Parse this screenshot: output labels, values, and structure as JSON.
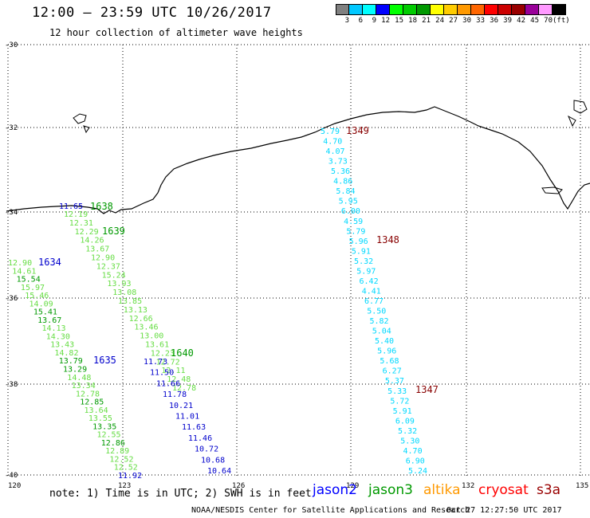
{
  "header": {
    "title": "12:00 – 23:59 UTC 10/26/2017",
    "subtitle": "12 hour collection of altimeter wave heights"
  },
  "color_scale": {
    "labels": [
      "3",
      "6",
      "9",
      "12",
      "15",
      "18",
      "21",
      "24",
      "27",
      "30",
      "33",
      "36",
      "39",
      "42",
      "45",
      "70",
      "(ft)"
    ],
    "colors": [
      "#808080",
      "#00c8ff",
      "#00ffff",
      "#0000ff",
      "#00ff00",
      "#00cc00",
      "#009900",
      "#ffff00",
      "#ffcc00",
      "#ff9900",
      "#ff6600",
      "#ff0000",
      "#cc0000",
      "#990000",
      "#990099",
      "#ff99ff",
      "#000000"
    ]
  },
  "axes": {
    "lat_labels": [
      "-30",
      "-32",
      "-34",
      "-36",
      "-38",
      "-40"
    ],
    "lon_labels": [
      "120",
      "123",
      "126",
      "129",
      "132",
      "135"
    ]
  },
  "tracks": {
    "ids": [
      "1349",
      "1348",
      "1347",
      "1638",
      "1639",
      "1640",
      "1634",
      "1635"
    ],
    "track_1349_1348_1347": [
      "5.79",
      "4.70",
      "4.07",
      "3.73",
      "5.36",
      "4.86",
      "5.84",
      "5.95",
      "6.00",
      "4.59",
      "5.79",
      "5.96",
      "5.91",
      "5.32",
      "5.97",
      "6.42",
      "4.41",
      "6.77",
      "5.50",
      "5.82",
      "5.04",
      "5.40",
      "5.96",
      "5.68",
      "6.27",
      "5.37",
      "5.33",
      "5.72",
      "5.91",
      "6.09",
      "5.32",
      "5.30",
      "4.70",
      "6.90",
      "5.24"
    ],
    "track_1638_1639_1640": [
      "12.19",
      "12.31",
      "12.29",
      "14.26",
      "13.67",
      "12.90",
      "12.37",
      "15.24",
      "13.93",
      "13.08",
      "13.85",
      "13.13",
      "12.66",
      "13.46",
      "13.00",
      "13.61",
      "12.23",
      "12.72",
      "12.11",
      "12.48",
      "12.78"
    ],
    "track_1640_blue": [
      "11.73",
      "11.50",
      "11.66",
      "11.78",
      "10.21",
      "11.01",
      "11.63",
      "11.46",
      "10.72",
      "10.68",
      "10.64"
    ],
    "track_1634_left": [
      "12.90",
      "14.61",
      "15.54",
      "15.97",
      "15.46",
      "14.09",
      "15.41",
      "13.67",
      "14.13",
      "14.30",
      "13.43",
      "14.82",
      "13.79",
      "13.29",
      "14.48",
      "13.34",
      "12.78",
      "12.85",
      "13.64",
      "13.55",
      "13.35",
      "12.55",
      "12.86",
      "12.89",
      "12.52",
      "12.52",
      "11.92"
    ],
    "coast_label": "11.65"
  },
  "footer": {
    "note": "note: 1) Time is in UTC; 2) SWH is in feet",
    "credit": "NOAA/NESDIS Center for Satellite Applications and Research",
    "timestamp": "Oct 27 12:27:50 UTC 2017",
    "satellites": [
      "jason2",
      "jason3",
      "altika",
      "cryosat",
      "s3a"
    ],
    "satellite_colors": [
      "#0000ff",
      "#009900",
      "#ff9900",
      "#ff0000",
      "#990000"
    ]
  }
}
